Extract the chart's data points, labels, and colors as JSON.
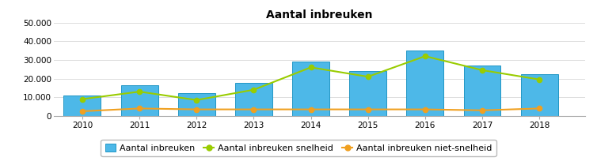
{
  "title": "Aantal inbreuken",
  "years": [
    2010,
    2011,
    2012,
    2013,
    2014,
    2015,
    2016,
    2017,
    2018
  ],
  "bar_values": [
    11000,
    16500,
    12000,
    17500,
    29000,
    24000,
    35000,
    27000,
    22500
  ],
  "line_snelheid": [
    9000,
    13000,
    8500,
    14000,
    26000,
    21000,
    32000,
    24500,
    19500
  ],
  "line_niet_snelheid": [
    2500,
    4000,
    3500,
    3500,
    3500,
    3500,
    3500,
    3000,
    4000
  ],
  "bar_color": "#4db8e8",
  "bar_edge_color": "#2196c4",
  "line_snelheid_color": "#99cc00",
  "line_niet_snelheid_color": "#f0a020",
  "ylim": [
    0,
    50000
  ],
  "yticks": [
    0,
    10000,
    20000,
    30000,
    40000,
    50000
  ],
  "ytick_labels": [
    "0",
    "10.000",
    "20.000",
    "30.000",
    "40.000",
    "50.000"
  ],
  "legend_labels": [
    "Aantal inbreuken",
    "Aantal inbreuken snelheid",
    "Aantal inbreuken niet-snelheid"
  ],
  "background_color": "#ffffff",
  "grid_color": "#dddddd",
  "title_fontsize": 10,
  "tick_fontsize": 7.5,
  "legend_fontsize": 8
}
